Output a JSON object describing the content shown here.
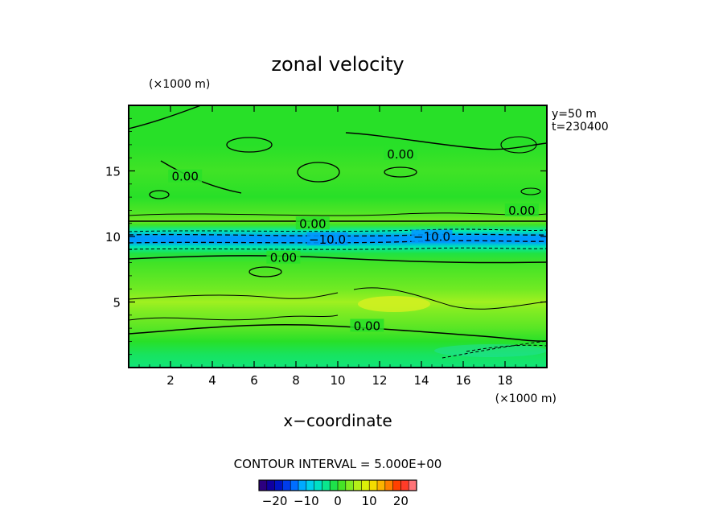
{
  "chart_data": {
    "type": "heatmap",
    "title": "zonal velocity",
    "xlabel": "x−coordinate",
    "x_unit": "(×1000 m)",
    "y_unit": "(×1000 m)",
    "xlim": [
      0,
      20
    ],
    "ylim": [
      0,
      20
    ],
    "x_ticks": [
      2,
      4,
      6,
      8,
      10,
      12,
      14,
      16,
      18
    ],
    "y_ticks": [
      5,
      10,
      15
    ],
    "info_lines": [
      "y=50  m",
      "t=230400"
    ],
    "contour_interval_text": "CONTOUR INTERVAL = 5.000E+00",
    "contour_labels": [
      {
        "text": "0.00",
        "x": 13.0,
        "y": 16.2
      },
      {
        "text": "0.00",
        "x": 2.7,
        "y": 14.5
      },
      {
        "text": "0.00",
        "x": 18.8,
        "y": 11.9
      },
      {
        "text": "0.00",
        "x": 8.8,
        "y": 10.9
      },
      {
        "text": "−10.0",
        "x": 9.5,
        "y": 9.7
      },
      {
        "text": "−10.0",
        "x": 14.5,
        "y": 9.9
      },
      {
        "text": "0.00",
        "x": 7.4,
        "y": 8.3
      },
      {
        "text": "0.00",
        "x": 11.4,
        "y": 3.1
      }
    ],
    "colorbar": {
      "range": [
        -25,
        25
      ],
      "tick_values": [
        -20,
        -10,
        0,
        10,
        20
      ],
      "tick_labels": [
        "−20",
        "−10",
        "0",
        "10",
        "20"
      ]
    },
    "profile": [
      {
        "y": 0.0,
        "u": -3
      },
      {
        "y": 1.0,
        "u": -2
      },
      {
        "y": 2.0,
        "u": 0
      },
      {
        "y": 3.0,
        "u": 2
      },
      {
        "y": 4.5,
        "u": 4
      },
      {
        "y": 5.0,
        "u": 5
      },
      {
        "y": 6.0,
        "u": 3
      },
      {
        "y": 7.0,
        "u": 2
      },
      {
        "y": 8.0,
        "u": 1
      },
      {
        "y": 8.7,
        "u": -1
      },
      {
        "y": 9.2,
        "u": -5
      },
      {
        "y": 9.6,
        "u": -12
      },
      {
        "y": 10.0,
        "u": -12
      },
      {
        "y": 10.4,
        "u": -5
      },
      {
        "y": 10.9,
        "u": 1
      },
      {
        "y": 11.2,
        "u": 3
      },
      {
        "y": 11.6,
        "u": 2
      },
      {
        "y": 13.0,
        "u": 0
      },
      {
        "y": 15.0,
        "u": 1
      },
      {
        "y": 17.0,
        "u": 0
      },
      {
        "y": 20.0,
        "u": 0
      }
    ]
  }
}
